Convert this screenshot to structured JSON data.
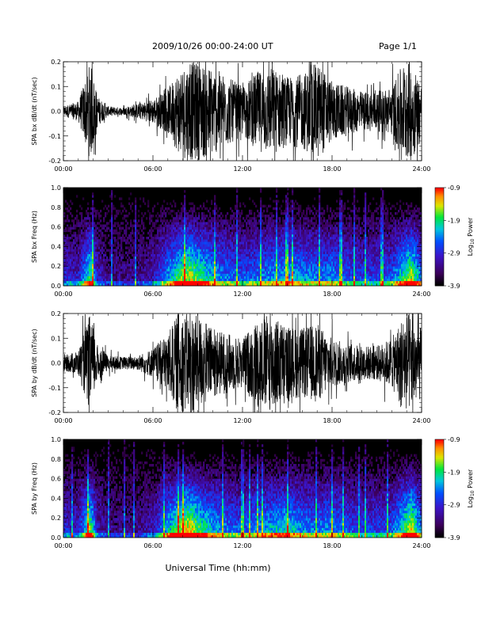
{
  "header": {
    "title": "2009/10/26  00:00-24:00 UT",
    "page": "Page 1/1"
  },
  "xlabel": "Universal Time (hh:mm)",
  "x_ticks": [
    "00:00",
    "06:00",
    "12:00",
    "18:00",
    "24:00"
  ],
  "colorbar": {
    "label_base": "Log",
    "label_sub": "10",
    "label_rest": " Power",
    "ticks": [
      "-0.9",
      "-1.9",
      "-2.9",
      "-3.9"
    ]
  },
  "chart_data": [
    {
      "type": "line",
      "ylabel": "SPA bx dB/dt (nT/sec)",
      "ylim": [
        -0.2,
        0.2
      ],
      "y_ticks": [
        "0.2",
        "0.1",
        "0.0",
        "-0.1",
        "-0.2"
      ],
      "x_range_hours": [
        0,
        24
      ],
      "series_color": "#000000",
      "envelope": {
        "hours": [
          0,
          1,
          1.8,
          2.3,
          3,
          4,
          5,
          6,
          7,
          7.7,
          8.3,
          9,
          10,
          11,
          12,
          13,
          14,
          15,
          16,
          17,
          18,
          19,
          20,
          21,
          22,
          22.8,
          23.3,
          24
        ],
        "amplitude": [
          0.02,
          0.04,
          0.2,
          0.06,
          0.02,
          0.015,
          0.03,
          0.05,
          0.09,
          0.17,
          0.2,
          0.2,
          0.18,
          0.14,
          0.1,
          0.16,
          0.18,
          0.14,
          0.15,
          0.2,
          0.12,
          0.1,
          0.08,
          0.08,
          0.1,
          0.2,
          0.2,
          0.12
        ]
      }
    },
    {
      "type": "heatmap",
      "ylabel": "SPA bx Freq (Hz)",
      "ylim": [
        0,
        1.0
      ],
      "y_ticks": [
        "1.0",
        "0.8",
        "0.6",
        "0.4",
        "0.2",
        "0.0"
      ],
      "x_range_hours": [
        0,
        24
      ],
      "color_range": [
        -3.9,
        -0.9
      ],
      "activity": {
        "hours": [
          0,
          1,
          1.8,
          2.3,
          3,
          5,
          6,
          7,
          8,
          8.5,
          9,
          10,
          11,
          12,
          13,
          14,
          15,
          16,
          17,
          18,
          19,
          20,
          21,
          22,
          22.5,
          23.3,
          24
        ],
        "level": [
          0.35,
          0.3,
          0.75,
          0.3,
          0.2,
          0.2,
          0.3,
          0.55,
          0.8,
          0.85,
          0.75,
          0.6,
          0.5,
          0.45,
          0.5,
          0.55,
          0.6,
          0.55,
          0.5,
          0.55,
          0.45,
          0.4,
          0.4,
          0.45,
          0.6,
          0.85,
          0.5
        ]
      }
    },
    {
      "type": "line",
      "ylabel": "SPA by dB/dt (nT/sec)",
      "ylim": [
        -0.2,
        0.2
      ],
      "y_ticks": [
        "0.2",
        "0.1",
        "0.0",
        "-0.1",
        "-0.2"
      ],
      "x_range_hours": [
        0,
        24
      ],
      "series_color": "#000000",
      "envelope": {
        "hours": [
          0,
          1,
          1.8,
          2.3,
          3,
          4,
          5,
          6,
          7,
          7.7,
          8.3,
          9,
          10,
          11,
          12,
          13,
          14,
          15,
          16,
          17,
          18,
          19,
          20,
          21,
          22,
          22.8,
          23.3,
          24
        ],
        "amplitude": [
          0.03,
          0.05,
          0.2,
          0.07,
          0.03,
          0.025,
          0.03,
          0.06,
          0.12,
          0.2,
          0.2,
          0.2,
          0.14,
          0.12,
          0.1,
          0.18,
          0.2,
          0.15,
          0.14,
          0.16,
          0.1,
          0.08,
          0.07,
          0.07,
          0.1,
          0.2,
          0.2,
          0.14
        ]
      }
    },
    {
      "type": "heatmap",
      "ylabel": "SPA by Freq (Hz)",
      "ylim": [
        0,
        1.0
      ],
      "y_ticks": [
        "1.0",
        "0.8",
        "0.6",
        "0.4",
        "0.2",
        "0.0"
      ],
      "x_range_hours": [
        0,
        24
      ],
      "color_range": [
        -3.9,
        -0.9
      ],
      "activity": {
        "hours": [
          0,
          1,
          1.8,
          2.3,
          3,
          5,
          6,
          7,
          8,
          8.5,
          9,
          10,
          11,
          12,
          13,
          14,
          15,
          16,
          17,
          18,
          19,
          20,
          21,
          22,
          22.5,
          23.3,
          24
        ],
        "level": [
          0.35,
          0.3,
          0.8,
          0.3,
          0.2,
          0.2,
          0.3,
          0.6,
          0.85,
          0.9,
          0.75,
          0.6,
          0.5,
          0.45,
          0.55,
          0.6,
          0.65,
          0.55,
          0.5,
          0.55,
          0.45,
          0.4,
          0.4,
          0.45,
          0.6,
          0.9,
          0.5
        ]
      }
    }
  ]
}
